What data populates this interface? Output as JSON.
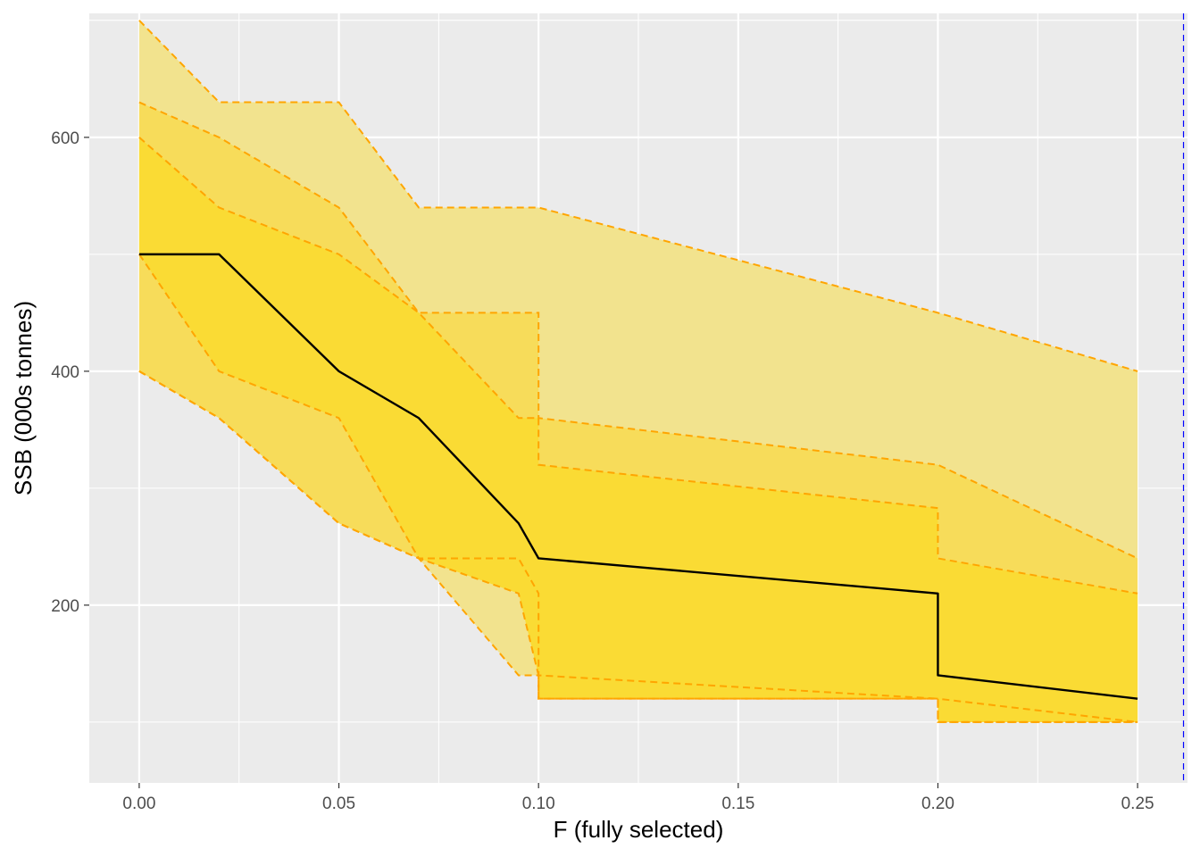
{
  "chart_data": {
    "type": "area",
    "xlabel": "F (fully selected)",
    "ylabel": "SSB (000s tonnes)",
    "xlim": [
      -0.0125,
      0.2625
    ],
    "ylim": [
      48,
      706
    ],
    "x_ticks": [
      0.0,
      0.05,
      0.1,
      0.15,
      0.2,
      0.25
    ],
    "x_tick_labels": [
      "0.00",
      "0.05",
      "0.10",
      "0.15",
      "0.20",
      "0.25"
    ],
    "y_ticks": [
      200,
      400,
      600
    ],
    "y_tick_labels": [
      "200",
      "400",
      "600"
    ],
    "grid": true,
    "legend": "none",
    "colors": {
      "panel_background": "#EBEBEB",
      "grid": "#FFFFFF",
      "band_outer": "#F2E38E",
      "band_middle": "#F7DC5A",
      "band_inner": "#FADB34",
      "band_edge": "#FFA500",
      "median_line": "#000000",
      "reference_line": "#0000FF"
    },
    "bands": [
      {
        "level": "outer",
        "x": [
          0,
          0.02,
          0.05,
          0.07,
          0.095,
          0.1,
          0.1,
          0.2,
          0.2,
          0.25
        ],
        "upper": [
          700,
          630,
          630,
          540,
          540,
          540,
          540,
          450,
          450,
          400
        ],
        "lower": [
          400,
          360,
          270,
          240,
          140,
          140,
          120,
          120,
          120,
          100
        ]
      },
      {
        "level": "middle",
        "x": [
          0,
          0.02,
          0.05,
          0.07,
          0.095,
          0.1,
          0.1,
          0.2,
          0.2,
          0.25
        ],
        "upper": [
          630,
          600,
          540,
          450,
          450,
          450,
          360,
          320,
          320,
          240
        ],
        "lower": [
          400,
          360,
          270,
          240,
          240,
          210,
          140,
          120,
          100,
          100
        ]
      },
      {
        "level": "inner",
        "x": [
          0,
          0.02,
          0.05,
          0.07,
          0.095,
          0.1,
          0.1,
          0.2,
          0.2,
          0.25
        ],
        "upper": [
          600,
          540,
          500,
          450,
          360,
          360,
          320,
          283,
          240,
          210
        ],
        "lower": [
          500,
          400,
          360,
          240,
          210,
          140,
          120,
          120,
          100,
          100
        ]
      }
    ],
    "median": {
      "x": [
        0,
        0.02,
        0.05,
        0.07,
        0.095,
        0.1,
        0.2,
        0.2,
        0.25
      ],
      "y": [
        500,
        500,
        400,
        360,
        270,
        240,
        210,
        140,
        120
      ]
    },
    "reference_line_x": 0.2615
  }
}
